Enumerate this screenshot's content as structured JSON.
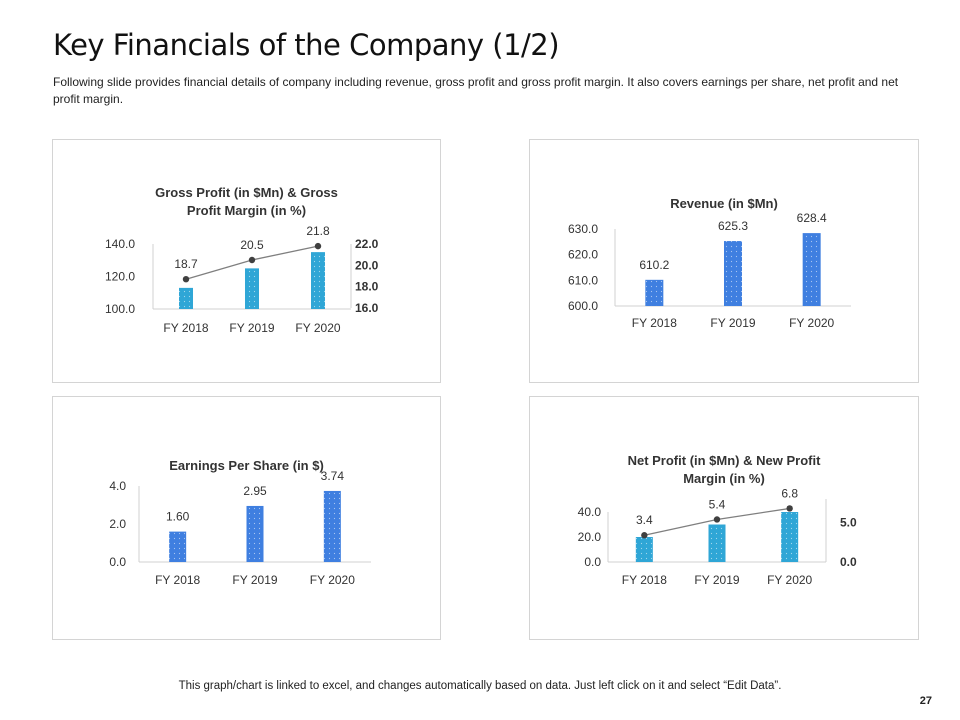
{
  "slide": {
    "title": "Key Financials of the Company (1/2)",
    "subtitle": "Following slide provides financial details of company including revenue, gross profit and gross profit margin. It also covers earnings per share, net profit and net profit margin.",
    "footer": "This graph/chart is linked to excel, and changes automatically based on data. Just left click on it and select “Edit Data”.",
    "page_number": "27"
  },
  "colors": {
    "teal_bar": "#2fa6d6",
    "blue_bar": "#3f7fe0",
    "line": "#7f7f7f",
    "marker": "#404040",
    "axis": "#d0d0d0"
  },
  "chart_data": [
    {
      "id": "gross-profit",
      "type": "bar+line",
      "title": "Gross Profit (in $Mn) & Gross Profit Margin (in %)",
      "title_lines": [
        "Gross Profit (in $Mn) & Gross",
        "Profit Margin (in %)"
      ],
      "categories": [
        "FY 2018",
        "FY 2019",
        "FY 2020"
      ],
      "series": [
        {
          "name": "Gross Profit (in $Mn)",
          "type": "bar",
          "axis": "left",
          "values": [
            113,
            125,
            135
          ]
        },
        {
          "name": "Gross Profit Margin (in %)",
          "type": "line",
          "axis": "right",
          "values": [
            18.7,
            20.5,
            21.8
          ],
          "labels": [
            "18.7",
            "20.5",
            "21.8"
          ]
        }
      ],
      "ylim": [
        100,
        140
      ],
      "yticks": [
        "100.0",
        "120.0",
        "140.0"
      ],
      "y2lim": [
        16,
        22
      ],
      "y2ticks": [
        "16.0",
        "18.0",
        "20.0",
        "22.0"
      ]
    },
    {
      "id": "revenue",
      "type": "bar",
      "title": "Revenue (in $Mn)",
      "title_lines": [
        "Revenue (in $Mn)"
      ],
      "categories": [
        "FY 2018",
        "FY 2019",
        "FY 2020"
      ],
      "series": [
        {
          "name": "Revenue (in $Mn)",
          "type": "bar",
          "axis": "left",
          "values": [
            610.2,
            625.3,
            628.4
          ],
          "labels": [
            "610.2",
            "625.3",
            "628.4"
          ]
        }
      ],
      "ylim": [
        600,
        630
      ],
      "yticks": [
        "600.0",
        "610.0",
        "620.0",
        "630.0"
      ]
    },
    {
      "id": "eps",
      "type": "bar",
      "title": "Earnings Per Share (in $)",
      "title_lines": [
        "Earnings Per Share (in $)"
      ],
      "categories": [
        "FY 2018",
        "FY 2019",
        "FY 2020"
      ],
      "series": [
        {
          "name": "Earnings Per Share (in $)",
          "type": "bar",
          "axis": "left",
          "values": [
            1.6,
            2.95,
            3.74
          ],
          "labels": [
            "1.60",
            "2.95",
            "3.74"
          ]
        }
      ],
      "ylim": [
        0,
        4
      ],
      "yticks": [
        "0.0",
        "2.0",
        "4.0"
      ]
    },
    {
      "id": "net-profit",
      "type": "bar+line",
      "title": "Net Profit (in $Mn) & New Profit Margin (in %)",
      "title_lines": [
        "Net Profit (in $Mn) & New Profit",
        "Margin (in %)"
      ],
      "categories": [
        "FY 2018",
        "FY 2019",
        "FY 2020"
      ],
      "series": [
        {
          "name": "Net Profit (in $Mn)",
          "type": "bar",
          "axis": "left",
          "values": [
            20,
            30,
            40
          ]
        },
        {
          "name": "New Profit Margin (in %)",
          "type": "line",
          "axis": "right",
          "values": [
            3.4,
            5.4,
            6.8
          ],
          "labels": [
            "3.4",
            "5.4",
            "6.8"
          ]
        }
      ],
      "ylim": [
        0,
        40
      ],
      "yticks": [
        "0.0",
        "20.0",
        "40.0"
      ],
      "y2lim": [
        0,
        8
      ],
      "y2ticks": [
        "0.0",
        "5.0"
      ]
    }
  ]
}
